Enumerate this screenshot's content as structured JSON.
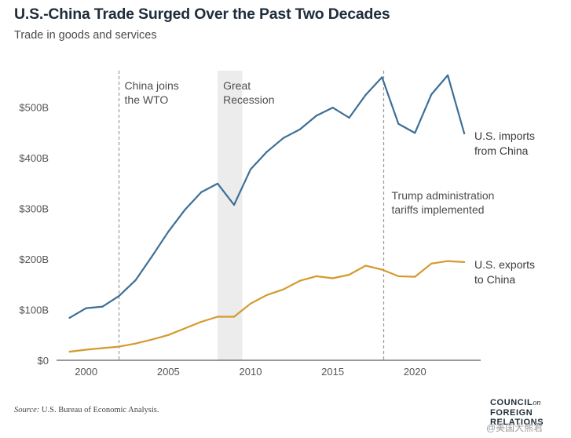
{
  "chart_data": {
    "type": "line",
    "title": "U.S.-China Trade Surged Over the Past Two Decades",
    "subtitle": "Trade in goods and services",
    "x": [
      1999,
      2000,
      2001,
      2002,
      2003,
      2004,
      2005,
      2006,
      2007,
      2008,
      2009,
      2010,
      2011,
      2012,
      2013,
      2014,
      2015,
      2016,
      2017,
      2018,
      2019,
      2020,
      2021,
      2022,
      2023
    ],
    "series": [
      {
        "name": "U.S. imports from China",
        "label_lines": [
          "U.S. imports",
          "from China"
        ],
        "color": "#3d6f97",
        "values": [
          84,
          103,
          106,
          127,
          158,
          205,
          254,
          297,
          332,
          349,
          307,
          377,
          412,
          439,
          456,
          483,
          499,
          479,
          524,
          559,
          467,
          449,
          525,
          563,
          448
        ]
      },
      {
        "name": "U.S. exports to China",
        "label_lines": [
          "U.S. exports",
          "to China"
        ],
        "color": "#d49a2e",
        "values": [
          17,
          21,
          24,
          27,
          33,
          41,
          50,
          63,
          76,
          86,
          86,
          112,
          129,
          140,
          157,
          166,
          162,
          169,
          187,
          179,
          166,
          165,
          191,
          196,
          194
        ]
      }
    ],
    "xlim": [
      1998.2,
      2024
    ],
    "ylim": [
      0,
      600
    ],
    "yticks": [
      0,
      100,
      200,
      300,
      400,
      500
    ],
    "ytick_labels": [
      "$0",
      "$100B",
      "$200B",
      "$300B",
      "$400B",
      "$500B"
    ],
    "xticks": [
      2000,
      2005,
      2010,
      2015,
      2020
    ],
    "xtick_labels": [
      "2000",
      "2005",
      "2010",
      "2015",
      "2020"
    ],
    "annotations": [
      {
        "kind": "vline",
        "x": 2002,
        "lines": [
          "China joins",
          "the WTO"
        ]
      },
      {
        "kind": "span",
        "x_start": 2008,
        "x_end": 2009.5,
        "lines": [
          "Great",
          "Recession"
        ]
      },
      {
        "kind": "vline",
        "x": 2018.1,
        "lines": [
          "Trump administration",
          "tariffs implemented"
        ]
      }
    ],
    "grid": false,
    "legend": "direct labels at right end of lines"
  },
  "footer": {
    "source_label": "Source:",
    "source_text": " U.S. Bureau of Economic Analysis.",
    "logo_line1": "COUNCIL",
    "logo_on": "on",
    "logo_line2": "FOREIGN",
    "logo_line3": "RELATIONS",
    "watermark": "@美国大熊君"
  },
  "colors": {
    "imports": "#3d6f97",
    "exports": "#d49a2e",
    "recession_band": "#ececec",
    "dashed": "#9a9a9a"
  }
}
